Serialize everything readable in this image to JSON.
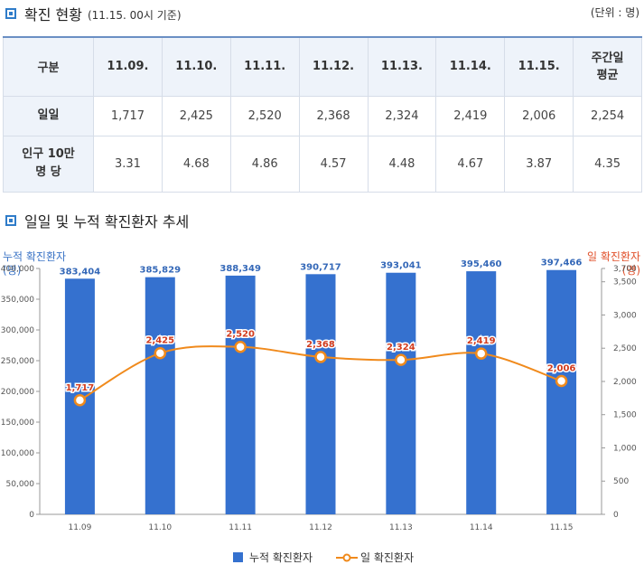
{
  "header1": {
    "title": "확진 현황",
    "subtitle": "(11.15. 00시 기준)",
    "unit": "(단위 : 명)"
  },
  "table": {
    "head": [
      "구분",
      "11.09.",
      "11.10.",
      "11.11.",
      "11.12.",
      "11.13.",
      "11.14.",
      "11.15.",
      "주간일평균"
    ],
    "head_last_lines": [
      "주간일",
      "평균"
    ],
    "rows": [
      {
        "label_lines": [
          "일일"
        ],
        "values": [
          "1,717",
          "2,425",
          "2,520",
          "2,368",
          "2,324",
          "2,419",
          "2,006",
          "2,254"
        ]
      },
      {
        "label_lines": [
          "인구 10만",
          "명 당"
        ],
        "values": [
          "3.31",
          "4.68",
          "4.86",
          "4.57",
          "4.48",
          "4.67",
          "3.87",
          "4.35"
        ]
      }
    ]
  },
  "header2": {
    "title": "일일 및 누적 확진환자 추세"
  },
  "colors": {
    "bar": "#3571cf",
    "line": "#f08a1c",
    "line_marker_border": "#f08a1c",
    "bar_label": "#3468b8",
    "line_label": "#d23c1e"
  },
  "chart_data": {
    "type": "bar+line",
    "categories": [
      "11.09",
      "11.10",
      "11.11",
      "11.12",
      "11.13",
      "11.14",
      "11.15"
    ],
    "series": [
      {
        "name": "누적 확진환자",
        "type": "bar",
        "axis": "left",
        "values": [
          383404,
          385829,
          388349,
          390717,
          393041,
          395460,
          397466
        ],
        "labels": [
          "383,404",
          "385,829",
          "388,349",
          "390,717",
          "393,041",
          "395,460",
          "397,466"
        ]
      },
      {
        "name": "일 확진환자",
        "type": "line",
        "axis": "right",
        "values": [
          1717,
          2425,
          2520,
          2368,
          2324,
          2419,
          2006
        ],
        "labels": [
          "1,717",
          "2,425",
          "2,520",
          "2,368",
          "2,324",
          "2,419",
          "2,006"
        ]
      }
    ],
    "left_axis": {
      "label_lines": [
        "누적 확진환자",
        "(명)"
      ],
      "range": [
        0,
        400000
      ],
      "ticks": [
        0,
        50000,
        100000,
        150000,
        200000,
        250000,
        300000,
        350000,
        400000
      ],
      "tick_labels": [
        "0",
        "50,000",
        "100,000",
        "150,000",
        "200,000",
        "250,000",
        "300,000",
        "350,000",
        "400,000"
      ]
    },
    "right_axis": {
      "label_lines": [
        "일 확진환자",
        "(명)"
      ],
      "range": [
        0,
        3700
      ],
      "ticks": [
        0,
        500,
        1000,
        1500,
        2000,
        2500,
        3000,
        3500,
        3700
      ],
      "tick_labels": [
        "0",
        "500",
        "1,000",
        "1,500",
        "2,000",
        "2,500",
        "3,000",
        "3,500",
        "3,700"
      ]
    },
    "legend": {
      "position": "bottom",
      "items": [
        "누적 확진환자",
        "일 확진환자"
      ]
    },
    "grid": false
  }
}
